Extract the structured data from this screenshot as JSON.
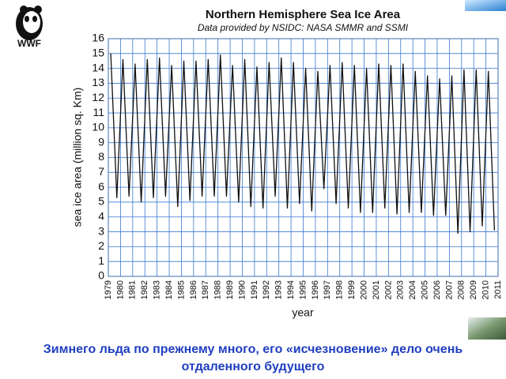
{
  "logo_text": "WWF",
  "chart_data": {
    "type": "line",
    "title": "Northern Hemisphere Sea Ice Area",
    "subtitle": "Data provided by NSIDC: NASA SMMR and SSMI",
    "x_label": "year",
    "y_label": "sea ice area (million sq. Km)",
    "x": [
      1979.2,
      1979.7,
      1980.2,
      1980.7,
      1981.2,
      1981.7,
      1982.2,
      1982.7,
      1983.2,
      1983.7,
      1984.2,
      1984.7,
      1985.2,
      1985.7,
      1986.2,
      1986.7,
      1987.2,
      1987.7,
      1988.2,
      1988.7,
      1989.2,
      1989.7,
      1990.2,
      1990.7,
      1991.2,
      1991.7,
      1992.2,
      1992.7,
      1993.2,
      1993.7,
      1994.2,
      1994.7,
      1995.2,
      1995.7,
      1996.2,
      1996.7,
      1997.2,
      1997.7,
      1998.2,
      1998.7,
      1999.2,
      1999.7,
      2000.2,
      2000.7,
      2001.2,
      2001.7,
      2002.2,
      2002.7,
      2003.2,
      2003.7,
      2004.2,
      2004.7,
      2005.2,
      2005.7,
      2006.2,
      2006.7,
      2007.2,
      2007.7,
      2008.2,
      2008.7,
      2009.2,
      2009.7,
      2010.2,
      2010.7
    ],
    "series": [
      {
        "color": "#111111",
        "values": [
          15.0,
          5.3,
          14.6,
          5.4,
          14.3,
          5.0,
          14.6,
          5.3,
          14.7,
          5.4,
          14.2,
          4.7,
          14.5,
          5.1,
          14.5,
          5.4,
          14.6,
          5.4,
          14.9,
          5.4,
          14.2,
          5.0,
          14.6,
          4.7,
          14.1,
          4.6,
          14.4,
          5.4,
          14.7,
          4.6,
          14.4,
          4.9,
          14.0,
          4.4,
          13.8,
          5.9,
          14.2,
          4.9,
          14.4,
          4.6,
          14.2,
          4.3,
          14.0,
          4.3,
          14.3,
          4.6,
          14.2,
          4.2,
          14.3,
          4.3,
          13.8,
          4.3,
          13.5,
          4.1,
          13.3,
          4.1,
          13.5,
          2.9,
          13.9,
          3.0,
          13.9,
          3.4,
          13.8,
          3.1
        ]
      }
    ],
    "xlim": [
      1979,
      2011
    ],
    "xticks": [
      1979,
      1980,
      1981,
      1982,
      1983,
      1984,
      1985,
      1986,
      1987,
      1988,
      1989,
      1990,
      1991,
      1992,
      1993,
      1994,
      1995,
      1996,
      1997,
      1998,
      1999,
      2000,
      2001,
      2002,
      2003,
      2004,
      2005,
      2006,
      2007,
      2008,
      2009,
      2010,
      2011
    ],
    "ylim": [
      0,
      16
    ],
    "yticks": [
      0,
      1,
      2,
      3,
      4,
      5,
      6,
      7,
      8,
      9,
      10,
      11,
      12,
      13,
      14,
      15,
      16
    ],
    "grid": true,
    "grid_color": "#3a78d0"
  },
  "caption": {
    "lines": [
      "Зимнего льда по прежнему много, его «исчезновение» дело очень",
      "отдаленного будущего"
    ]
  }
}
